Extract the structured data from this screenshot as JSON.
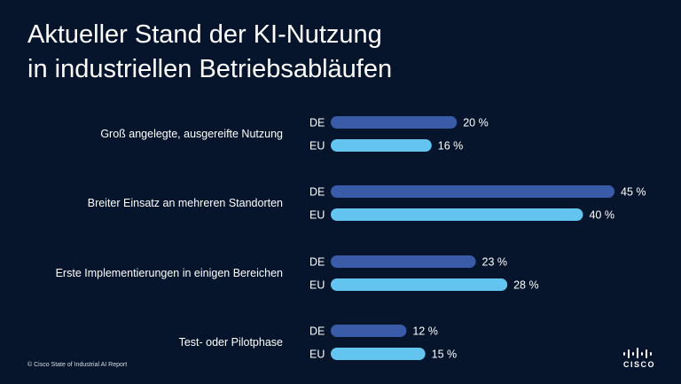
{
  "title": {
    "line1": "Aktueller Stand der KI-Nutzung",
    "line2": "in industriellen Betriebsabläufen"
  },
  "footnote": "© Cisco State of Industrial AI Report",
  "logo": {
    "text": "CISCO",
    "icon": "cisco-bridge-logo"
  },
  "colors": {
    "background": "#06152c",
    "de": "#3a5ba8",
    "eu": "#64c4f0",
    "text": "#ffffff"
  },
  "chart_data": {
    "type": "bar",
    "orientation": "horizontal",
    "title": "Aktueller Stand der KI-Nutzung in industriellen Betriebsabläufen",
    "categories": [
      "Groß angelegte, ausgereifte Nutzung",
      "Breiter Einsatz an mehreren Standorten",
      "Erste Implementierungen in einigen Bereichen",
      "Test- oder Pilotphase"
    ],
    "series": [
      {
        "name": "DE",
        "values": [
          20,
          45,
          23,
          12
        ],
        "labels": [
          "20 %",
          "45 %",
          "23 %",
          "12 %"
        ]
      },
      {
        "name": "EU",
        "values": [
          16,
          40,
          28,
          15
        ],
        "labels": [
          "16 %",
          "40 %",
          "28 %",
          "15 %"
        ]
      }
    ],
    "xlim": [
      0,
      45
    ],
    "unit": "%",
    "grid": false
  }
}
